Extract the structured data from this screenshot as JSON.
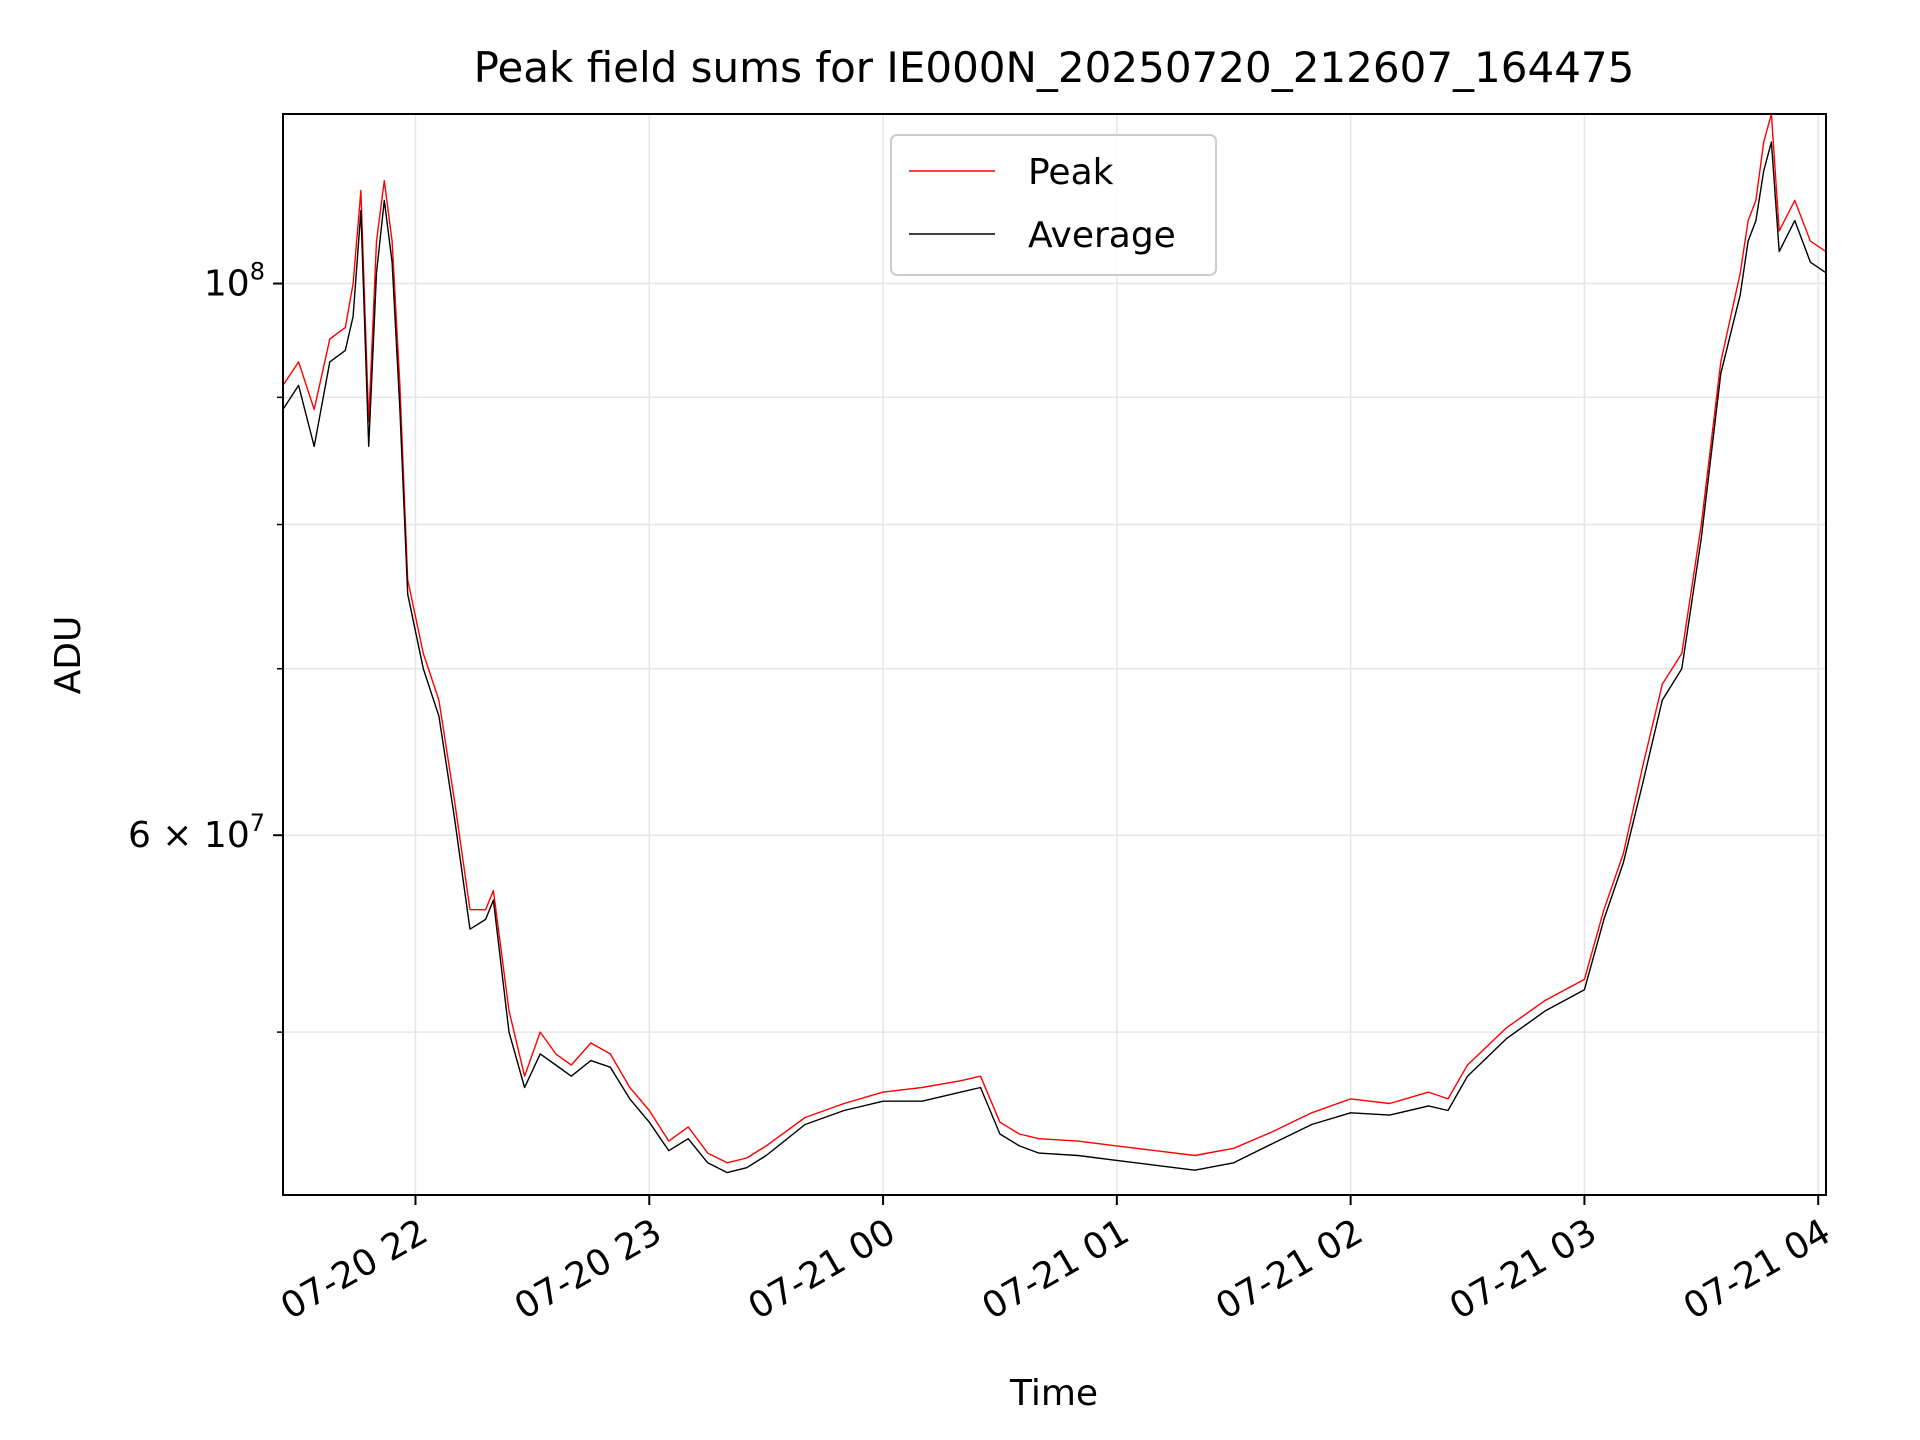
{
  "chart_data": {
    "type": "line",
    "title": "Peak field sums for IE000N_20250720_212607_164475",
    "xlabel": "Time",
    "ylabel": "ADU",
    "yscale": "log",
    "xlim": [
      "2025-07-20 21:26",
      "2025-07-21 04:02"
    ],
    "ylim": [
      43000000,
      117000000
    ],
    "x_ticks": [
      "07-20 22",
      "07-20 23",
      "07-21 00",
      "07-21 01",
      "07-21 02",
      "07-21 03",
      "07-21 04"
    ],
    "y_ticks": [
      {
        "value": 60000000,
        "base": "6 × 10",
        "exp": "7"
      },
      {
        "value": 100000000,
        "base": "10",
        "exp": "8"
      }
    ],
    "grid": true,
    "legend_position": "top-center",
    "series": [
      {
        "name": "Peak",
        "color": "#ff0000",
        "x": [
          "2025-07-20 21:26",
          "2025-07-20 21:30",
          "2025-07-20 21:34",
          "2025-07-20 21:38",
          "2025-07-20 21:42",
          "2025-07-20 21:44",
          "2025-07-20 21:46",
          "2025-07-20 21:48",
          "2025-07-20 21:50",
          "2025-07-20 21:52",
          "2025-07-20 21:54",
          "2025-07-20 21:56",
          "2025-07-20 21:58",
          "2025-07-20 22:02",
          "2025-07-20 22:06",
          "2025-07-20 22:10",
          "2025-07-20 22:14",
          "2025-07-20 22:18",
          "2025-07-20 22:20",
          "2025-07-20 22:24",
          "2025-07-20 22:28",
          "2025-07-20 22:32",
          "2025-07-20 22:36",
          "2025-07-20 22:40",
          "2025-07-20 22:45",
          "2025-07-20 22:50",
          "2025-07-20 22:55",
          "2025-07-20 23:00",
          "2025-07-20 23:05",
          "2025-07-20 23:10",
          "2025-07-20 23:15",
          "2025-07-20 23:20",
          "2025-07-20 23:25",
          "2025-07-20 23:30",
          "2025-07-20 23:40",
          "2025-07-20 23:50",
          "2025-07-21 00:00",
          "2025-07-21 00:10",
          "2025-07-21 00:20",
          "2025-07-21 00:25",
          "2025-07-21 00:30",
          "2025-07-21 00:35",
          "2025-07-21 00:40",
          "2025-07-21 00:50",
          "2025-07-21 01:00",
          "2025-07-21 01:10",
          "2025-07-21 01:20",
          "2025-07-21 01:30",
          "2025-07-21 01:40",
          "2025-07-21 01:50",
          "2025-07-21 02:00",
          "2025-07-21 02:10",
          "2025-07-21 02:20",
          "2025-07-21 02:25",
          "2025-07-21 02:30",
          "2025-07-21 02:40",
          "2025-07-21 02:50",
          "2025-07-21 03:00",
          "2025-07-21 03:05",
          "2025-07-21 03:10",
          "2025-07-21 03:15",
          "2025-07-21 03:20",
          "2025-07-21 03:25",
          "2025-07-21 03:30",
          "2025-07-21 03:35",
          "2025-07-21 03:40",
          "2025-07-21 03:42",
          "2025-07-21 03:44",
          "2025-07-21 03:46",
          "2025-07-21 03:48",
          "2025-07-21 03:50",
          "2025-07-21 03:54",
          "2025-07-21 03:58",
          "2025-07-21 04:02"
        ],
        "values": [
          91000000,
          93000000,
          89000000,
          95000000,
          96000000,
          100000000,
          109000000,
          88000000,
          104000000,
          110000000,
          104000000,
          91000000,
          76000000,
          71000000,
          68000000,
          62000000,
          56000000,
          56000000,
          57000000,
          51000000,
          48000000,
          50000000,
          49000000,
          48500000,
          49500000,
          49000000,
          47500000,
          46500000,
          45200000,
          45800000,
          44700000,
          44300000,
          44500000,
          45000000,
          46200000,
          46800000,
          47300000,
          47500000,
          47800000,
          48000000,
          46000000,
          45500000,
          45300000,
          45200000,
          45000000,
          44800000,
          44600000,
          44900000,
          45600000,
          46400000,
          47000000,
          46800000,
          47300000,
          47000000,
          48500000,
          50200000,
          51500000,
          52500000,
          56000000,
          59000000,
          64000000,
          69000000,
          71000000,
          80000000,
          93000000,
          101000000,
          106000000,
          108000000,
          114000000,
          117000000,
          105000000,
          108000000,
          104000000,
          103000000
        ]
      },
      {
        "name": "Average",
        "color": "#000000",
        "x": [
          "2025-07-20 21:26",
          "2025-07-20 21:30",
          "2025-07-20 21:34",
          "2025-07-20 21:38",
          "2025-07-20 21:42",
          "2025-07-20 21:44",
          "2025-07-20 21:46",
          "2025-07-20 21:48",
          "2025-07-20 21:50",
          "2025-07-20 21:52",
          "2025-07-20 21:54",
          "2025-07-20 21:56",
          "2025-07-20 21:58",
          "2025-07-20 22:02",
          "2025-07-20 22:06",
          "2025-07-20 22:10",
          "2025-07-20 22:14",
          "2025-07-20 22:18",
          "2025-07-20 22:20",
          "2025-07-20 22:24",
          "2025-07-20 22:28",
          "2025-07-20 22:32",
          "2025-07-20 22:36",
          "2025-07-20 22:40",
          "2025-07-20 22:45",
          "2025-07-20 22:50",
          "2025-07-20 22:55",
          "2025-07-20 23:00",
          "2025-07-20 23:05",
          "2025-07-20 23:10",
          "2025-07-20 23:15",
          "2025-07-20 23:20",
          "2025-07-20 23:25",
          "2025-07-20 23:30",
          "2025-07-20 23:40",
          "2025-07-20 23:50",
          "2025-07-21 00:00",
          "2025-07-21 00:10",
          "2025-07-21 00:20",
          "2025-07-21 00:25",
          "2025-07-21 00:30",
          "2025-07-21 00:35",
          "2025-07-21 00:40",
          "2025-07-21 00:50",
          "2025-07-21 01:00",
          "2025-07-21 01:10",
          "2025-07-21 01:20",
          "2025-07-21 01:30",
          "2025-07-21 01:40",
          "2025-07-21 01:50",
          "2025-07-21 02:00",
          "2025-07-21 02:10",
          "2025-07-21 02:20",
          "2025-07-21 02:25",
          "2025-07-21 02:30",
          "2025-07-21 02:40",
          "2025-07-21 02:50",
          "2025-07-21 03:00",
          "2025-07-21 03:05",
          "2025-07-21 03:10",
          "2025-07-21 03:15",
          "2025-07-21 03:20",
          "2025-07-21 03:25",
          "2025-07-21 03:30",
          "2025-07-21 03:35",
          "2025-07-21 03:40",
          "2025-07-21 03:42",
          "2025-07-21 03:44",
          "2025-07-21 03:46",
          "2025-07-21 03:48",
          "2025-07-21 03:50",
          "2025-07-21 03:54",
          "2025-07-21 03:58",
          "2025-07-21 04:02"
        ],
        "values": [
          89000000,
          91000000,
          86000000,
          93000000,
          94000000,
          97000000,
          107000000,
          86000000,
          101000000,
          108000000,
          102000000,
          89000000,
          75000000,
          70000000,
          67000000,
          61000000,
          55000000,
          55500000,
          56500000,
          50000000,
          47500000,
          49000000,
          48500000,
          48000000,
          48700000,
          48400000,
          47000000,
          46000000,
          44800000,
          45300000,
          44300000,
          43900000,
          44100000,
          44600000,
          45900000,
          46500000,
          46900000,
          46900000,
          47300000,
          47500000,
          45500000,
          45000000,
          44700000,
          44600000,
          44400000,
          44200000,
          44000000,
          44300000,
          45100000,
          45900000,
          46400000,
          46300000,
          46700000,
          46500000,
          48000000,
          49700000,
          51000000,
          52000000,
          55500000,
          58500000,
          63000000,
          68000000,
          70000000,
          79000000,
          92000000,
          99000000,
          104000000,
          106000000,
          111000000,
          114000000,
          103000000,
          106000000,
          102000000,
          101000000
        ]
      }
    ]
  }
}
